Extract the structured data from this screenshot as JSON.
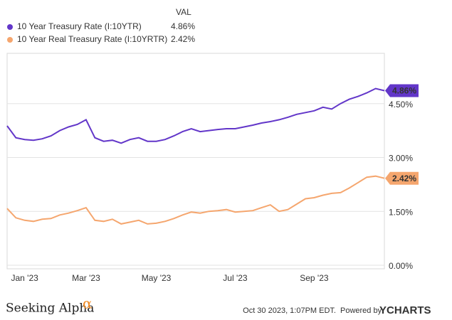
{
  "chart_data": {
    "type": "line",
    "legend_header": "VAL",
    "categories": [
      null,
      null,
      "Jan '23",
      null,
      null,
      null,
      null,
      null,
      null,
      "Mar '23",
      null,
      null,
      null,
      null,
      null,
      null,
      null,
      "May '23",
      null,
      null,
      null,
      null,
      null,
      null,
      null,
      null,
      "Jul '23",
      null,
      null,
      null,
      null,
      null,
      null,
      null,
      null,
      "Sep '23",
      null,
      null,
      null,
      null,
      null,
      null,
      null,
      null
    ],
    "series": [
      {
        "name": "10 Year Treasury Rate (I:10YTR)",
        "color": "#6236c9",
        "last_value_label": "4.86%",
        "values": [
          3.88,
          3.55,
          3.5,
          3.48,
          3.52,
          3.6,
          3.75,
          3.85,
          3.92,
          4.05,
          3.55,
          3.45,
          3.48,
          3.4,
          3.5,
          3.55,
          3.45,
          3.45,
          3.5,
          3.6,
          3.72,
          3.8,
          3.72,
          3.75,
          3.78,
          3.8,
          3.8,
          3.85,
          3.9,
          3.96,
          4.0,
          4.05,
          4.12,
          4.2,
          4.25,
          4.3,
          4.4,
          4.35,
          4.5,
          4.62,
          4.7,
          4.8,
          4.92,
          4.86
        ]
      },
      {
        "name": "10 Year Real Treasury Rate (I:10YRTR)",
        "color": "#f5a66e",
        "last_value_label": "2.42%",
        "values": [
          1.58,
          1.32,
          1.25,
          1.22,
          1.28,
          1.3,
          1.4,
          1.45,
          1.52,
          1.6,
          1.25,
          1.22,
          1.28,
          1.15,
          1.2,
          1.25,
          1.15,
          1.17,
          1.22,
          1.3,
          1.4,
          1.48,
          1.45,
          1.5,
          1.52,
          1.55,
          1.48,
          1.5,
          1.52,
          1.6,
          1.68,
          1.5,
          1.55,
          1.7,
          1.85,
          1.88,
          1.95,
          2.0,
          2.02,
          2.15,
          2.3,
          2.45,
          2.48,
          2.42
        ]
      }
    ],
    "ylim": [
      -0.1,
      5.9
    ],
    "yticks": [
      {
        "value": 0,
        "label": "0.00%"
      },
      {
        "value": 1.5,
        "label": "1.50%"
      },
      {
        "value": 3,
        "label": "3.00%"
      },
      {
        "value": 4.5,
        "label": "4.50%"
      }
    ],
    "grid": true,
    "footer": {
      "brand": "Seeking Alpha",
      "brand_mark": "α",
      "timestamp": "Oct 30 2023, 1:07PM EDT.",
      "powered_by": "Powered by",
      "provider": "YCHARTS"
    }
  }
}
